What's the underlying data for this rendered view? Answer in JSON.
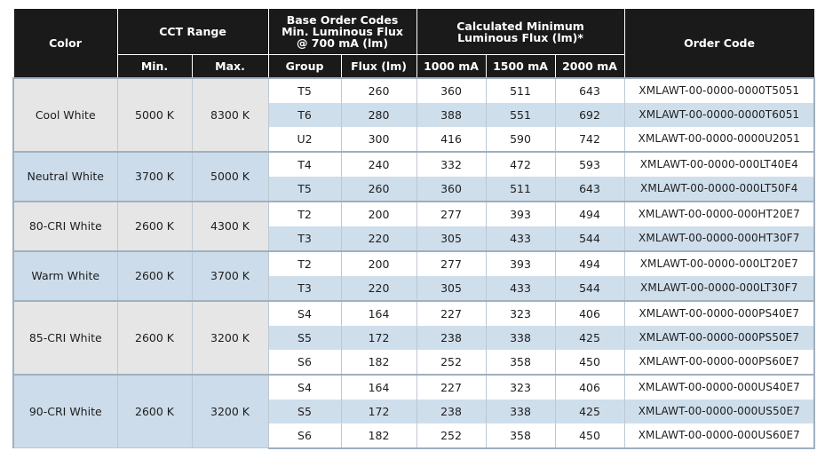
{
  "headers": {
    "color": "Color",
    "cct_range": "CCT Range",
    "base_order_codes_line1": "Base Order Codes",
    "base_order_codes_line2": "Min. Luminous Flux",
    "base_order_codes_line3": "@ 700 mA (lm)",
    "calc_min_line1": "Calculated Minimum",
    "calc_min_line2": "Luminous Flux (lm)*",
    "order_code": "Order Code",
    "min": "Min.",
    "max": "Max.",
    "group": "Group",
    "flux": "Flux (lm)",
    "ma1000": "1000 mA",
    "ma1500": "1500 mA",
    "ma2000": "2000 mA"
  },
  "groups": [
    {
      "color": "Cool White",
      "min": "5000 K",
      "max": "8300 K",
      "rows": [
        {
          "group": "T5",
          "flux": "260",
          "ma1000": "360",
          "ma1500": "511",
          "ma2000": "643",
          "code": "XMLAWT-00-0000-0000T5051"
        },
        {
          "group": "T6",
          "flux": "280",
          "ma1000": "388",
          "ma1500": "551",
          "ma2000": "692",
          "code": "XMLAWT-00-0000-0000T6051"
        },
        {
          "group": "U2",
          "flux": "300",
          "ma1000": "416",
          "ma1500": "590",
          "ma2000": "742",
          "code": "XMLAWT-00-0000-0000U2051"
        }
      ]
    },
    {
      "color": "Neutral White",
      "min": "3700 K",
      "max": "5000 K",
      "rows": [
        {
          "group": "T4",
          "flux": "240",
          "ma1000": "332",
          "ma1500": "472",
          "ma2000": "593",
          "code": "XMLAWT-00-0000-000LT40E4"
        },
        {
          "group": "T5",
          "flux": "260",
          "ma1000": "360",
          "ma1500": "511",
          "ma2000": "643",
          "code": "XMLAWT-00-0000-000LT50F4"
        }
      ]
    },
    {
      "color": "80-CRI White",
      "min": "2600 K",
      "max": "4300 K",
      "rows": [
        {
          "group": "T2",
          "flux": "200",
          "ma1000": "277",
          "ma1500": "393",
          "ma2000": "494",
          "code": "XMLAWT-00-0000-000HT20E7"
        },
        {
          "group": "T3",
          "flux": "220",
          "ma1000": "305",
          "ma1500": "433",
          "ma2000": "544",
          "code": "XMLAWT-00-0000-000HT30F7"
        }
      ]
    },
    {
      "color": "Warm White",
      "min": "2600 K",
      "max": "3700 K",
      "rows": [
        {
          "group": "T2",
          "flux": "200",
          "ma1000": "277",
          "ma1500": "393",
          "ma2000": "494",
          "code": "XMLAWT-00-0000-000LT20E7"
        },
        {
          "group": "T3",
          "flux": "220",
          "ma1000": "305",
          "ma1500": "433",
          "ma2000": "544",
          "code": "XMLAWT-00-0000-000LT30F7"
        }
      ]
    },
    {
      "color": "85-CRI White",
      "min": "2600 K",
      "max": "3200 K",
      "rows": [
        {
          "group": "S4",
          "flux": "164",
          "ma1000": "227",
          "ma1500": "323",
          "ma2000": "406",
          "code": "XMLAWT-00-0000-000PS40E7"
        },
        {
          "group": "S5",
          "flux": "172",
          "ma1000": "238",
          "ma1500": "338",
          "ma2000": "425",
          "code": "XMLAWT-00-0000-000PS50E7"
        },
        {
          "group": "S6",
          "flux": "182",
          "ma1000": "252",
          "ma1500": "358",
          "ma2000": "450",
          "code": "XMLAWT-00-0000-000PS60E7"
        }
      ]
    },
    {
      "color": "90-CRI White",
      "min": "2600 K",
      "max": "3200 K",
      "rows": [
        {
          "group": "S4",
          "flux": "164",
          "ma1000": "227",
          "ma1500": "323",
          "ma2000": "406",
          "code": "XMLAWT-00-0000-000US40E7"
        },
        {
          "group": "S5",
          "flux": "172",
          "ma1000": "238",
          "ma1500": "338",
          "ma2000": "425",
          "code": "XMLAWT-00-0000-000US50E7"
        },
        {
          "group": "S6",
          "flux": "182",
          "ma1000": "252",
          "ma1500": "358",
          "ma2000": "450",
          "code": "XMLAWT-00-0000-000US60E7"
        }
      ]
    }
  ],
  "colors": {
    "header_bg": "#1a1a1a",
    "group_gray": "#e6e6e6",
    "group_blue": "#ccdcea",
    "row_blue": "#cfdeeb",
    "row_white": "#ffffff"
  }
}
